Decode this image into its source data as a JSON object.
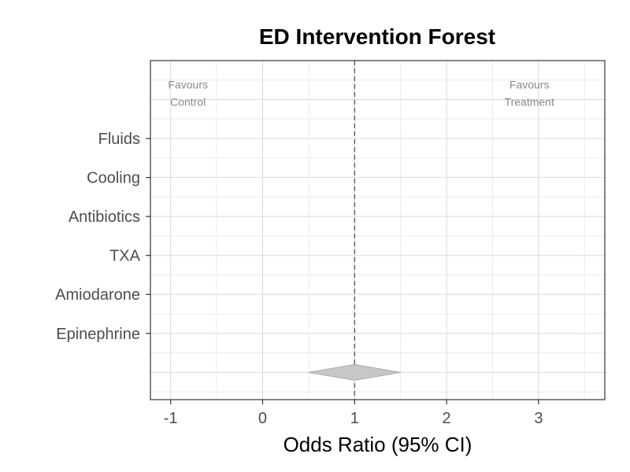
{
  "chart_data": {
    "type": "forest",
    "title": "ED Intervention Forest",
    "xlabel": "Odds Ratio (95% CI)",
    "ylabel": "",
    "xlim": [
      -1.22,
      3.72
    ],
    "x_ticks": [
      -1,
      0,
      1,
      2,
      3
    ],
    "x_tick_labels": [
      "-1",
      "0",
      "1",
      "2",
      "3"
    ],
    "grid": true,
    "reference_line": 1,
    "categories": [
      "Fluids",
      "Cooling",
      "Antibiotics",
      "TXA",
      "Amiodarone",
      "Epinephrine"
    ],
    "summary": {
      "estimate": 1.0,
      "ci_low": 0.5,
      "ci_high": 1.5
    },
    "annotations": {
      "left": [
        "Favours",
        "Control"
      ],
      "right": [
        "Favours",
        "Treatment"
      ]
    },
    "colors": {
      "diamond_fill": "#c8c8c8",
      "diamond_stroke": "#a8a8a8",
      "reference_line": "#666666",
      "grid_major": "#d9d9d9",
      "grid_minor": "#ececec",
      "panel_border": "#333333"
    }
  }
}
